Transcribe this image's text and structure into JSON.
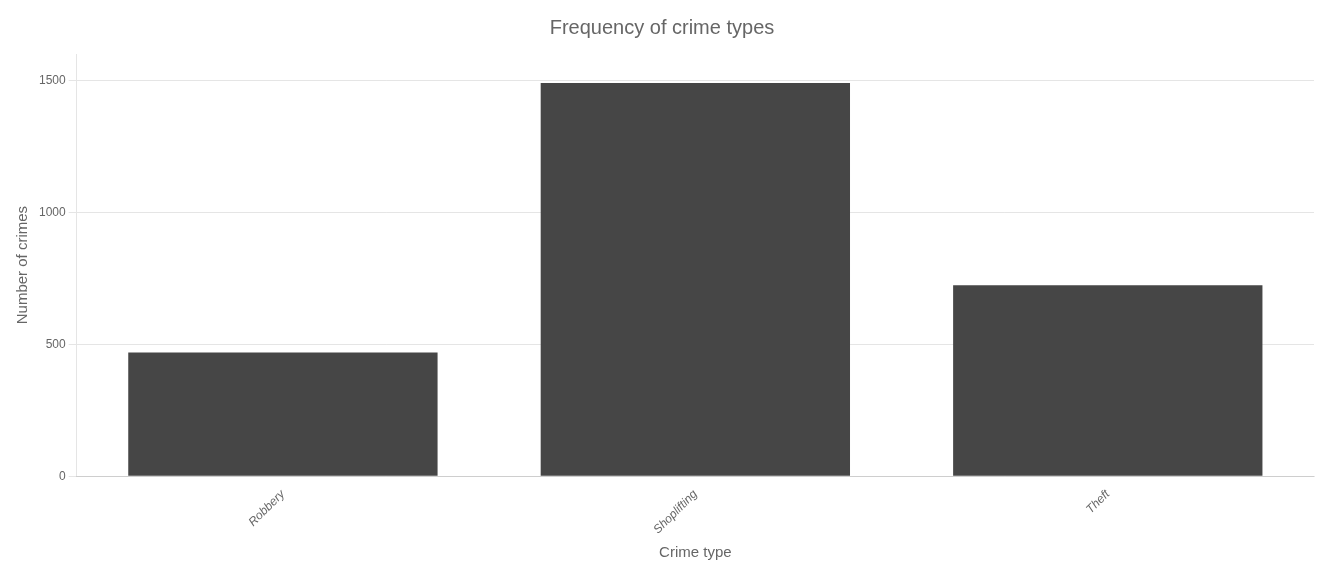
{
  "chart_data": {
    "type": "bar",
    "title": "Frequency of crime types",
    "categories": [
      "Robbery",
      "Shoplifting",
      "Theft"
    ],
    "values": [
      469,
      1490,
      724
    ],
    "color": "#464646",
    "xlabel": "Crime type",
    "ylabel": "Number of crimes",
    "ylim": [
      0,
      1600
    ],
    "yticks": [
      0,
      500,
      1000,
      1500
    ],
    "grid": true
  }
}
